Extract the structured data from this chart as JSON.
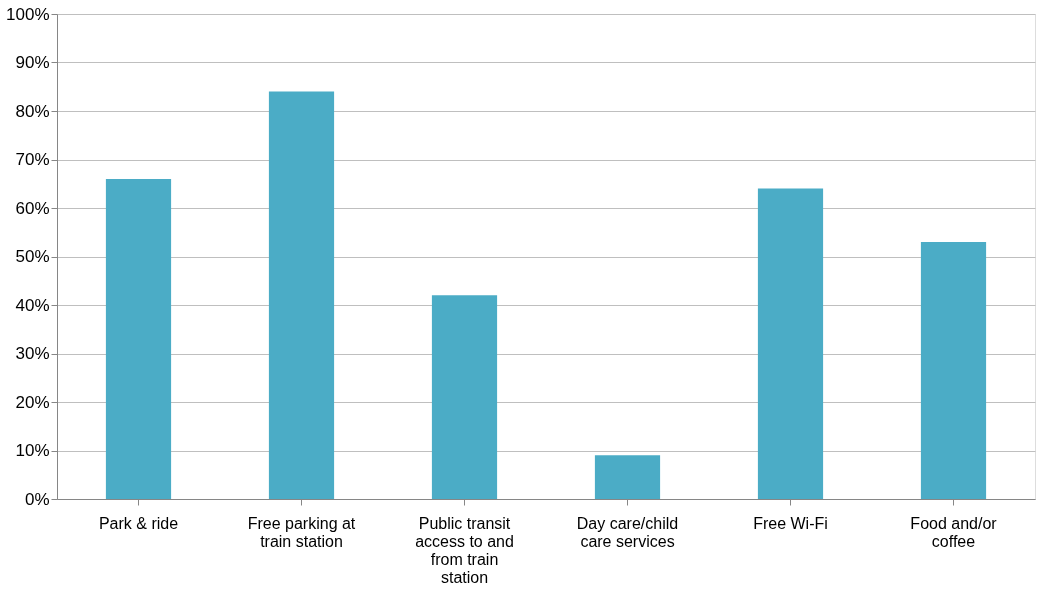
{
  "chart_data": {
    "type": "bar",
    "categories": [
      "Park & ride",
      "Free parking at train station",
      "Public transit access to and from train station",
      "Day care/child care services",
      "Free Wi-Fi",
      "Food and/or coffee"
    ],
    "values": [
      66,
      84,
      42,
      9,
      64,
      53
    ],
    "color": "#4bacc6",
    "ylim": [
      0,
      100
    ],
    "yticks": [
      {
        "value": 0,
        "label": "0%"
      },
      {
        "value": 10,
        "label": "10%"
      },
      {
        "value": 20,
        "label": "20%"
      },
      {
        "value": 30,
        "label": "30%"
      },
      {
        "value": 40,
        "label": "40%"
      },
      {
        "value": 50,
        "label": "50%"
      },
      {
        "value": 60,
        "label": "60%"
      },
      {
        "value": 70,
        "label": "70%"
      },
      {
        "value": 80,
        "label": "80%"
      },
      {
        "value": 90,
        "label": "90%"
      },
      {
        "value": 100,
        "label": "100%"
      }
    ],
    "grid": "y"
  }
}
